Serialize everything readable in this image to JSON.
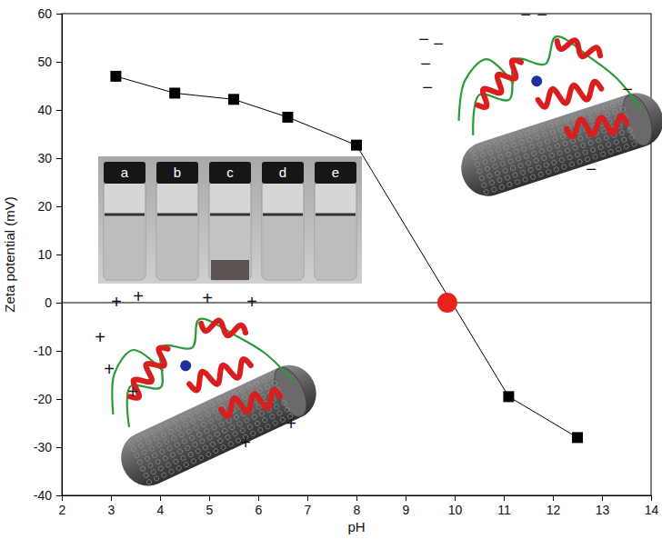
{
  "chart_data": {
    "type": "line",
    "x_label": "pH",
    "y_label": "Zeta potential (mV)",
    "x": [
      3.1,
      4.3,
      5.5,
      6.6,
      8.0,
      11.1,
      12.5
    ],
    "values": [
      47,
      43.5,
      42.2,
      38.5,
      32.7,
      -19.5,
      -28
    ],
    "color": "#000000",
    "marker": "square",
    "line_style": "solid",
    "xlim": [
      2,
      14
    ],
    "xticks": [
      2,
      3,
      4,
      5,
      6,
      7,
      8,
      9,
      10,
      11,
      12,
      13,
      14
    ],
    "ylim": [
      -40,
      60
    ],
    "yticks": [
      -40,
      -30,
      -20,
      -10,
      0,
      10,
      20,
      30,
      40,
      50,
      60
    ],
    "grid": false,
    "isoelectric_point": {
      "x": 9.85,
      "y": 0,
      "color": "#e8231c"
    },
    "inset_labels": [
      "a",
      "b",
      "c",
      "d",
      "e"
    ],
    "charge_signs": {
      "positive": "+",
      "negative": "−"
    }
  }
}
